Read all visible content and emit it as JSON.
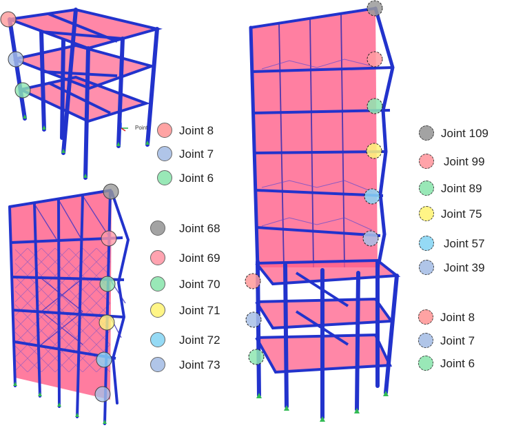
{
  "figure": {
    "panel_a": {
      "point_label": "Point",
      "legend": [
        {
          "label": "Joint 8",
          "color": "#ff9a9a",
          "dashed": false
        },
        {
          "label": "Joint 7",
          "color": "#a8bfe6",
          "dashed": false
        },
        {
          "label": "Joint 6",
          "color": "#8ee6b0",
          "dashed": false
        }
      ]
    },
    "panel_b": {
      "legend": [
        {
          "label": "Joint 68",
          "color": "#9a9a9a",
          "dashed": false
        },
        {
          "label": "Joint 69",
          "color": "#ff9aa8",
          "dashed": false
        },
        {
          "label": "Joint 70",
          "color": "#8ee6b0",
          "dashed": false
        },
        {
          "label": "Joint 71",
          "color": "#fff57a",
          "dashed": false
        },
        {
          "label": "Joint 72",
          "color": "#8ad6f5",
          "dashed": false
        },
        {
          "label": "Joint 73",
          "color": "#a8bfe6",
          "dashed": false
        }
      ]
    },
    "panel_c": {
      "legend_upper": [
        {
          "label": "Joint 109",
          "color": "#9a9a9a",
          "dashed": true
        },
        {
          "label": "Joint 99",
          "color": "#ff9aa0",
          "dashed": true
        },
        {
          "label": "Joint 89",
          "color": "#8ee6b0",
          "dashed": true
        },
        {
          "label": "Joint 75",
          "color": "#fff57a",
          "dashed": true
        },
        {
          "label": "Joint 57",
          "color": "#8ad6f5",
          "dashed": true
        },
        {
          "label": "Joint 39",
          "color": "#a8bfe6",
          "dashed": true
        }
      ],
      "legend_lower": [
        {
          "label": "Joint 8",
          "color": "#ff9a9a",
          "dashed": true
        },
        {
          "label": "Joint 7",
          "color": "#a8bfe6",
          "dashed": true
        },
        {
          "label": "Joint 6",
          "color": "#8ee6b0",
          "dashed": true
        }
      ]
    },
    "colors": {
      "frame": "#2233cc",
      "slab": "#ff5f8a",
      "support": "#33bb55",
      "axis_red": "#dd2222",
      "axis_green": "#22aa44",
      "axis_blue": "#2244ee"
    }
  }
}
